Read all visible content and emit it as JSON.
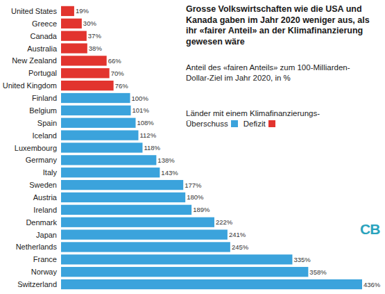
{
  "chart_data": {
    "type": "bar",
    "orientation": "horizontal",
    "title": "Grosse Volkswirtschaften wie die USA und Kanada gaben im Jahr 2020 weniger aus, als ihr «fairer Anteil» an der Klimafinanzierung gewesen wäre",
    "subtitle": "Anteil des «fairen Anteils» zum 100-Milliarden-Dollar-Ziel im Jahr 2020, in %",
    "categories": [
      "United States",
      "Greece",
      "Canada",
      "Australia",
      "New Zealand",
      "Portugal",
      "United Kingdom",
      "Finland",
      "Belgium",
      "Spain",
      "Iceland",
      "Luxembourg",
      "Germany",
      "Italy",
      "Sweden",
      "Austria",
      "Ireland",
      "Denmark",
      "Japan",
      "Netherlands",
      "France",
      "Norway",
      "Switzerland"
    ],
    "values": [
      19,
      30,
      37,
      38,
      66,
      70,
      76,
      100,
      101,
      108,
      112,
      118,
      138,
      143,
      177,
      180,
      189,
      222,
      241,
      245,
      335,
      358,
      436
    ],
    "value_labels": [
      "19%",
      "30%",
      "37%",
      "38%",
      "66%",
      "70%",
      "76%",
      "100%",
      "101%",
      "108%",
      "112%",
      "118%",
      "138%",
      "143%",
      "177%",
      "180%",
      "189%",
      "222%",
      "241%",
      "245%",
      "335%",
      "358%",
      "436%"
    ],
    "colors": [
      "#e2342e",
      "#e2342e",
      "#e2342e",
      "#e2342e",
      "#e2342e",
      "#e2342e",
      "#e2342e",
      "#3ba3dc",
      "#3ba3dc",
      "#3ba3dc",
      "#3ba3dc",
      "#3ba3dc",
      "#3ba3dc",
      "#3ba3dc",
      "#3ba3dc",
      "#3ba3dc",
      "#3ba3dc",
      "#3ba3dc",
      "#3ba3dc",
      "#3ba3dc",
      "#3ba3dc",
      "#3ba3dc",
      "#3ba3dc"
    ],
    "xlim": [
      0,
      436
    ],
    "data_labels": true,
    "tick_labels": "y",
    "grid": false,
    "legend": "right",
    "legend_title": "Länder mit einem Klimafinanzierungs-",
    "legend_entries": [
      {
        "label": "Überschuss",
        "color": "#3ba3dc"
      },
      {
        "label": "Defizit",
        "color": "#e2342e"
      }
    ],
    "source": "CB"
  }
}
